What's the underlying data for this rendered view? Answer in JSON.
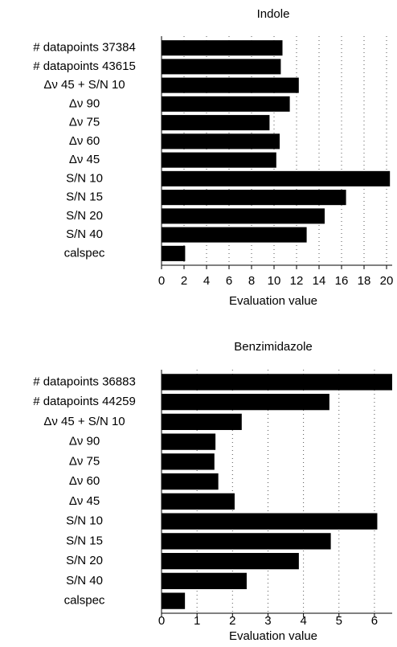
{
  "chart_data": [
    {
      "type": "bar",
      "orientation": "horizontal",
      "title": "Indole",
      "x_label": "Evaluation value",
      "categories": [
        "# datapoints 37384",
        "# datapoints 43615",
        "Δν 45 + S/N 10",
        "Δν 90",
        "Δν 75",
        "Δν 60",
        "Δν 45",
        "S/N 10",
        "S/N 15",
        "S/N 20",
        "S/N 40",
        "calspec"
      ],
      "values": [
        10.75,
        10.6,
        12.2,
        11.4,
        9.6,
        10.5,
        10.2,
        20.3,
        16.4,
        14.5,
        12.9,
        2.1
      ],
      "color": "#000000",
      "xlim": [
        0,
        20.5
      ],
      "xticks": [
        0,
        2,
        4,
        6,
        8,
        10,
        12,
        14,
        16,
        18,
        20
      ],
      "grid": true
    },
    {
      "type": "bar",
      "orientation": "horizontal",
      "title": "Benzimidazole",
      "x_label": "Evaluation value",
      "categories": [
        "# datapoints 36883",
        "# datapoints 44259",
        "Δν 45 + S/N 10",
        "Δν 90",
        "Δν 75",
        "Δν 60",
        "Δν 45",
        "S/N 10",
        "S/N 15",
        "S/N 20",
        "S/N 40",
        "calspec"
      ],
      "values": [
        6.5,
        4.73,
        2.26,
        1.52,
        1.49,
        1.6,
        2.06,
        6.08,
        4.77,
        3.87,
        2.4,
        0.66
      ],
      "color": "#000000",
      "xlim": [
        0,
        6.5
      ],
      "xticks": [
        0,
        1,
        2,
        3,
        4,
        5,
        6
      ],
      "grid": true
    }
  ]
}
